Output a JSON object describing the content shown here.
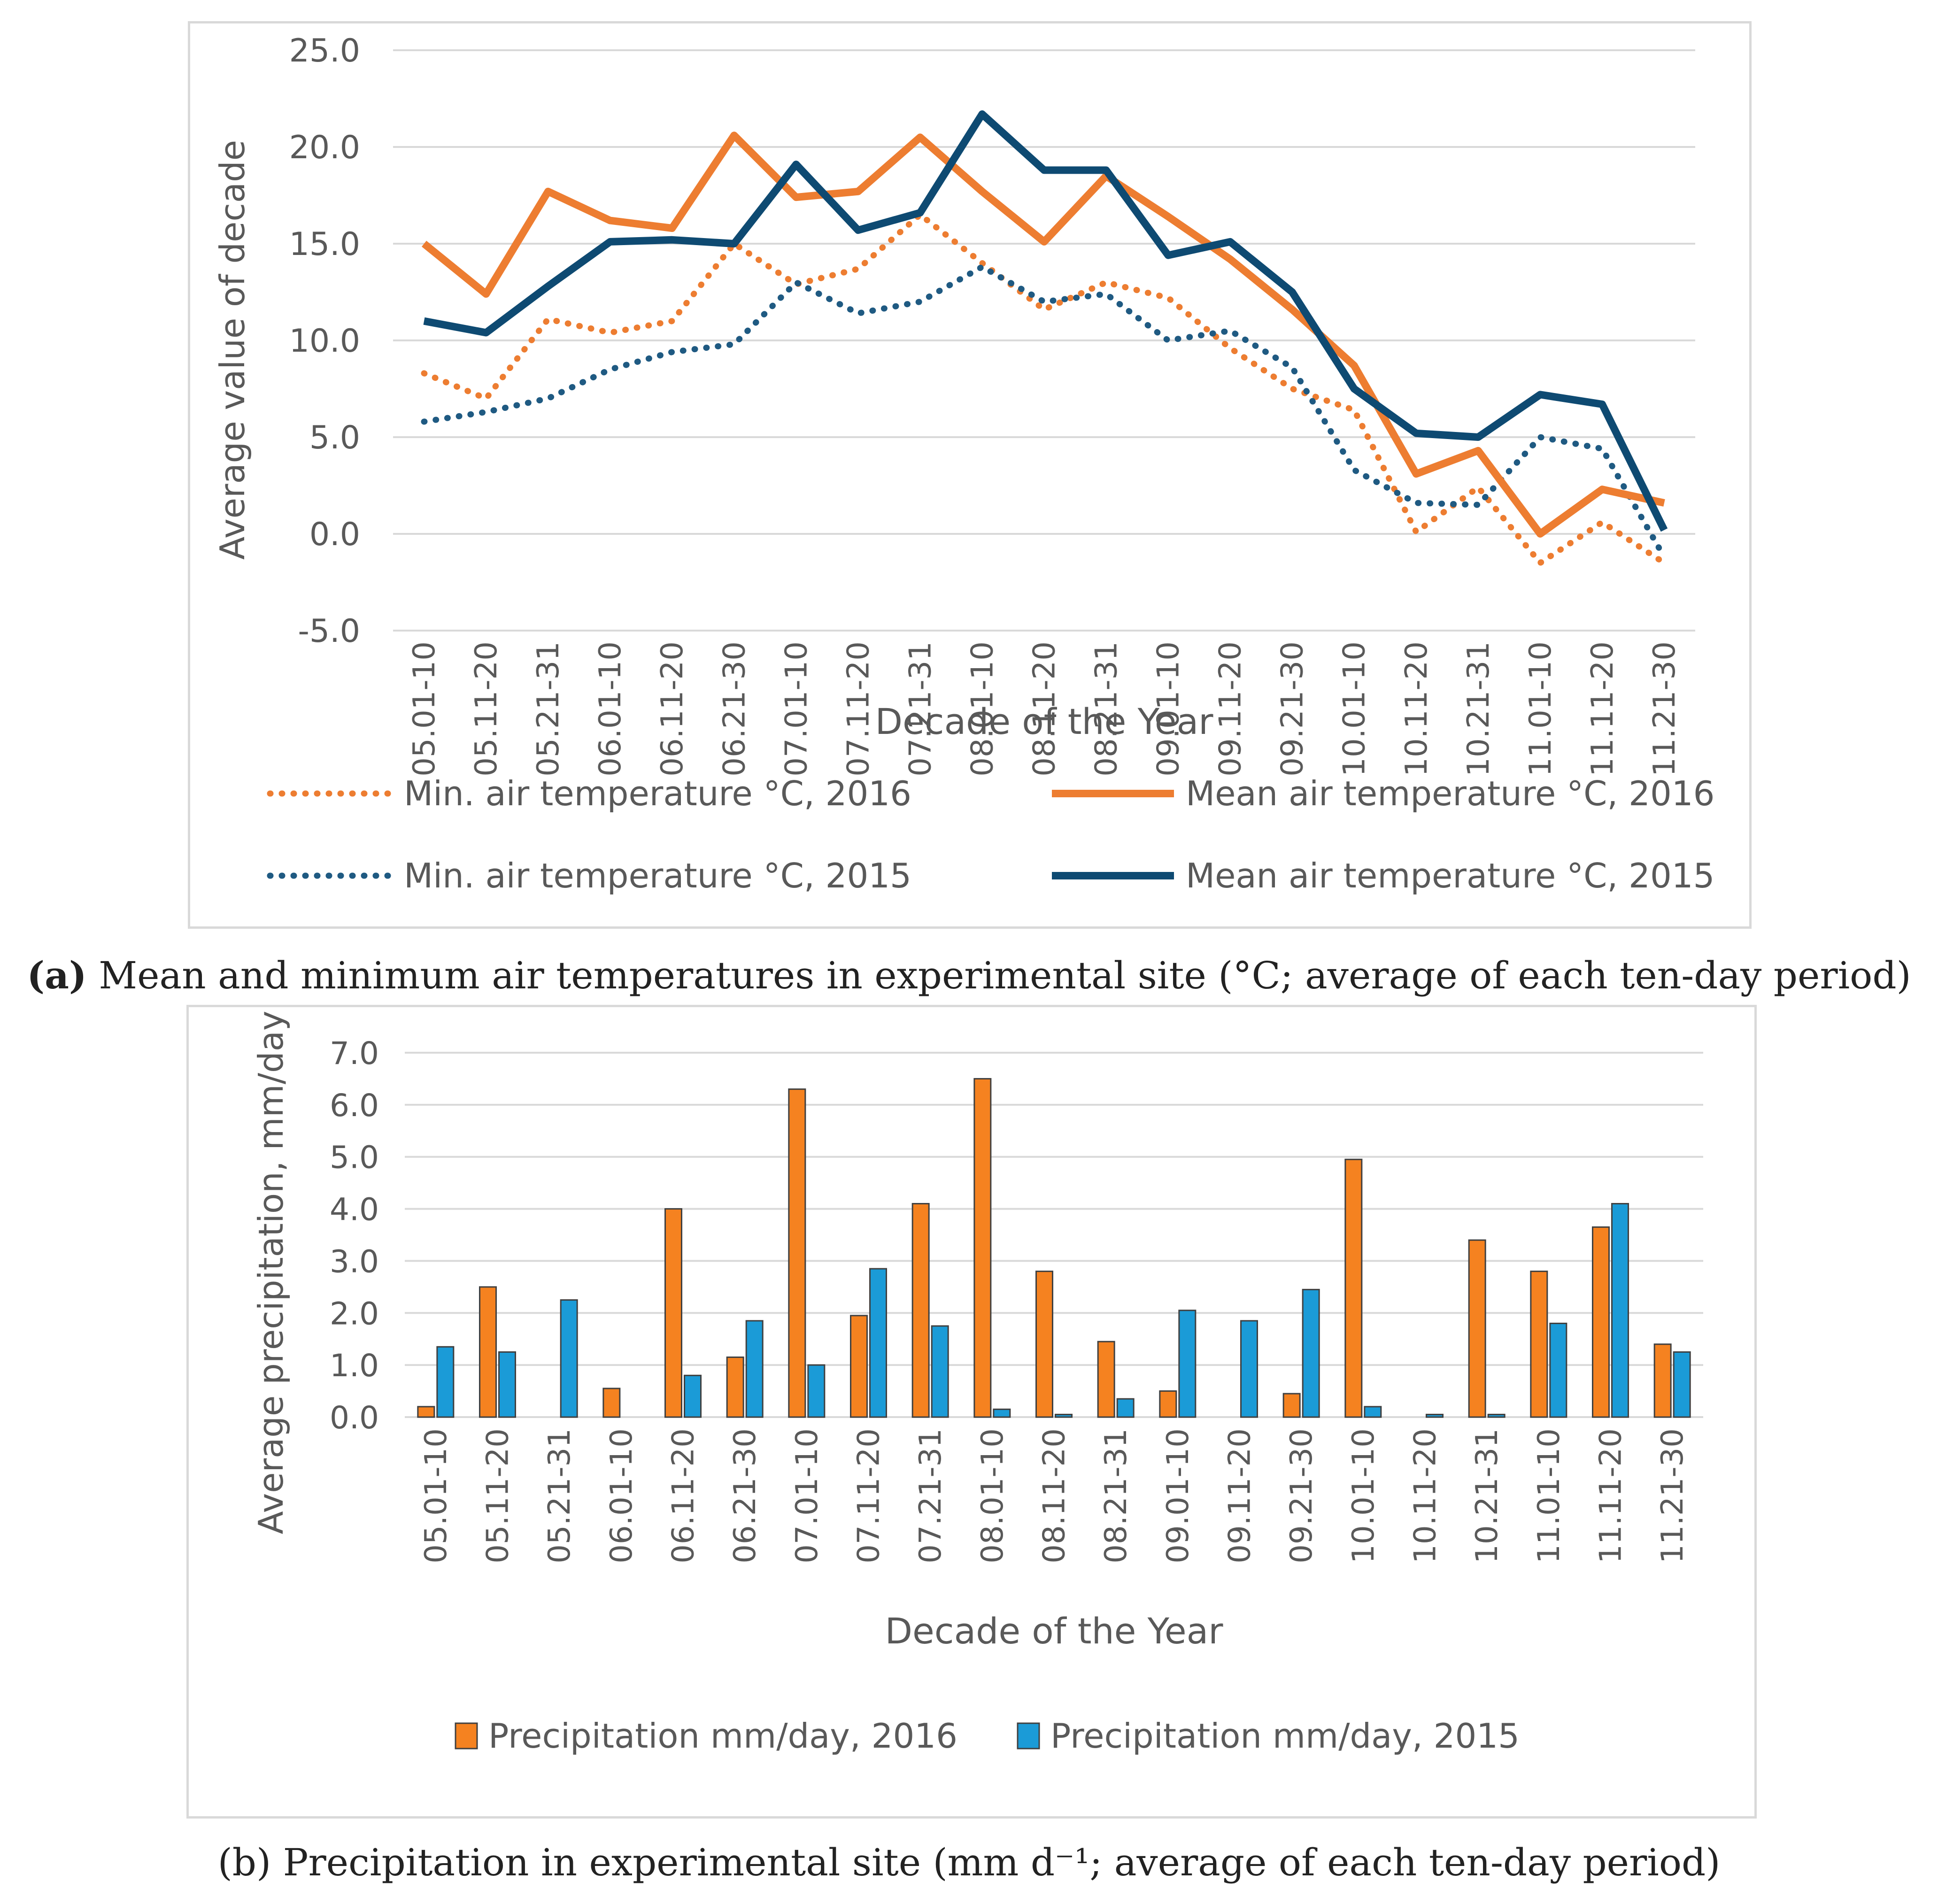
{
  "chart_data": [
    {
      "type": "line",
      "title": "",
      "xlabel": "Decade of the Year",
      "ylabel": "Average value of decade",
      "ylim": [
        -5,
        25
      ],
      "yticks": [
        "25.0",
        "20.0",
        "15.0",
        "10.0",
        "5.0",
        "0.0",
        "-5.0"
      ],
      "yticks_values": [
        25,
        20,
        15,
        10,
        5,
        0,
        -5
      ],
      "categories": [
        "05.01-10",
        "05.11-20",
        "05.21-31",
        "06.01-10",
        "06.11-20",
        "06.21-30",
        "07.01-10",
        "07.11-20",
        "07.21-31",
        "08.01-10",
        "08.11-20",
        "08.21-31",
        "09.01-10",
        "09.11-20",
        "09.21-30",
        "10.01-10",
        "10.11-20",
        "10.21-31",
        "11.01-10",
        "11.11-20",
        "11.21-30"
      ],
      "series": [
        {
          "name": "Min. air temperature °C, 2016",
          "style": "dotted",
          "color": "#ED7D31",
          "values": [
            8.3,
            7.0,
            11.1,
            10.4,
            11.0,
            15.0,
            12.9,
            13.7,
            16.5,
            14.0,
            11.6,
            13.0,
            12.2,
            9.6,
            7.5,
            6.4,
            0.1,
            2.4,
            -1.5,
            0.6,
            -1.5
          ]
        },
        {
          "name": "Mean air temperature °C, 2016",
          "style": "solid",
          "color": "#ED7D31",
          "values": [
            15.0,
            12.4,
            17.7,
            16.2,
            15.8,
            20.6,
            17.4,
            17.7,
            20.5,
            17.7,
            15.1,
            18.5,
            16.4,
            14.2,
            11.6,
            8.7,
            3.1,
            4.3,
            0.0,
            2.3,
            1.6
          ]
        },
        {
          "name": "Min. air temperature °C, 2015",
          "style": "dotted",
          "color": "#1F5A82",
          "values": [
            5.8,
            6.3,
            7.0,
            8.5,
            9.4,
            9.8,
            13.0,
            11.4,
            12.0,
            13.8,
            12.0,
            12.4,
            10.0,
            10.5,
            8.6,
            3.3,
            1.6,
            1.5,
            5.0,
            4.4,
            -1.2
          ]
        },
        {
          "name": "Mean air temperature °C, 2015",
          "style": "solid",
          "color": "#0E4A72",
          "values": [
            11.0,
            10.4,
            12.8,
            15.1,
            15.2,
            15.0,
            19.1,
            15.7,
            16.6,
            21.7,
            18.8,
            18.8,
            14.4,
            15.1,
            12.5,
            7.5,
            5.2,
            5.0,
            7.2,
            6.7,
            0.2
          ]
        }
      ],
      "legend_position": "bottom"
    },
    {
      "type": "bar",
      "title": "",
      "xlabel": "Decade of the Year",
      "ylabel": "Average precipitation, mm/day",
      "ylim": [
        0,
        7
      ],
      "yticks": [
        "7.0",
        "6.0",
        "5.0",
        "4.0",
        "3.0",
        "2.0",
        "1.0",
        "0.0"
      ],
      "yticks_values": [
        7,
        6,
        5,
        4,
        3,
        2,
        1,
        0
      ],
      "categories": [
        "05.01-10",
        "05.11-20",
        "05.21-31",
        "06.01-10",
        "06.11-20",
        "06.21-30",
        "07.01-10",
        "07.11-20",
        "07.21-31",
        "08.01-10",
        "08.11-20",
        "08.21-31",
        "09.01-10",
        "09.11-20",
        "09.21-30",
        "10.01-10",
        "10.11-20",
        "10.21-31",
        "11.01-10",
        "11.11-20",
        "11.21-30"
      ],
      "series": [
        {
          "name": "Precipitation mm/day, 2016",
          "color": "#F58220",
          "values": [
            0.2,
            2.5,
            0.0,
            0.55,
            4.0,
            1.15,
            6.3,
            1.95,
            4.1,
            6.5,
            2.8,
            1.45,
            0.5,
            0.0,
            0.45,
            4.95,
            0.0,
            3.4,
            2.8,
            3.65,
            1.4
          ]
        },
        {
          "name": "Precipitation mm/day, 2015",
          "color": "#1B9BD7",
          "values": [
            1.35,
            1.25,
            2.25,
            0.0,
            0.8,
            1.85,
            1.0,
            2.85,
            1.75,
            0.15,
            0.05,
            0.35,
            2.05,
            1.85,
            2.45,
            0.2,
            0.05,
            0.05,
            1.8,
            4.1,
            1.25
          ]
        }
      ],
      "legend_position": "bottom"
    }
  ],
  "captions": {
    "a_label": "(a)",
    "a_text": " Mean and minimum air temperatures in experimental site (°C; average of each ten-day period)",
    "b_text": "(b) Precipitation in experimental site (mm d⁻¹; average of each ten-day period)"
  },
  "colors": {
    "grid": "#d9d9d9",
    "text": "#595959",
    "orange": "#ED7D31",
    "navy": "#0E4A72",
    "bar_orange": "#F58220",
    "bar_blue": "#1B9BD7"
  }
}
